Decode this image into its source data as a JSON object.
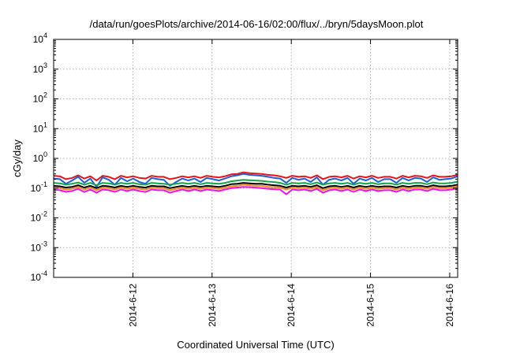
{
  "chart_data": {
    "type": "line",
    "title": "/data/run/goesPlots/archive/2014-06-16/02:00/flux/../bryn/5daysMoon.plot",
    "xlabel": "Coordinated Universal Time (UTC)",
    "ylabel": "cGy/day",
    "yscale": "log",
    "ylim": [
      0.0001,
      10000
    ],
    "xlim_days": [
      11.0,
      16.1
    ],
    "x_ticks": [
      {
        "label": "2014-6-12",
        "day": 12
      },
      {
        "label": "2014-6-13",
        "day": 13
      },
      {
        "label": "2014-6-14",
        "day": 14
      },
      {
        "label": "2014-6-15",
        "day": 15
      },
      {
        "label": "2014-6-16",
        "day": 16
      }
    ],
    "y_ticks": [
      {
        "base": "10",
        "exp": "-4",
        "value": 0.0001
      },
      {
        "base": "10",
        "exp": "-3",
        "value": 0.001
      },
      {
        "base": "10",
        "exp": "-2",
        "value": 0.01
      },
      {
        "base": "10",
        "exp": "-1",
        "value": 0.1
      },
      {
        "base": "10",
        "exp": "0",
        "value": 1
      },
      {
        "base": "10",
        "exp": "1",
        "value": 10
      },
      {
        "base": "10",
        "exp": "2",
        "value": 100
      },
      {
        "base": "10",
        "exp": "3",
        "value": 1000
      },
      {
        "base": "10",
        "exp": "4",
        "value": 10000
      }
    ],
    "grid": true,
    "legend": "none",
    "series": [
      {
        "color": "#e8141a",
        "values": [
          0.26,
          0.25,
          0.2,
          0.22,
          0.27,
          0.21,
          0.25,
          0.18,
          0.26,
          0.24,
          0.2,
          0.26,
          0.23,
          0.25,
          0.22,
          0.21,
          0.26,
          0.24,
          0.24,
          0.2,
          0.22,
          0.25,
          0.23,
          0.25,
          0.22,
          0.26,
          0.24,
          0.23,
          0.25,
          0.29,
          0.3,
          0.34,
          0.32,
          0.31,
          0.3,
          0.28,
          0.27,
          0.25,
          0.22,
          0.26,
          0.24,
          0.25,
          0.22,
          0.27,
          0.2,
          0.24,
          0.25,
          0.23,
          0.26,
          0.21,
          0.25,
          0.23,
          0.26,
          0.22,
          0.24,
          0.24,
          0.21,
          0.26,
          0.23,
          0.26,
          0.25,
          0.22,
          0.27,
          0.24,
          0.24,
          0.25,
          0.28
        ]
      },
      {
        "color": "#1f5fd6",
        "values": [
          0.21,
          0.2,
          0.14,
          0.18,
          0.24,
          0.15,
          0.21,
          0.11,
          0.23,
          0.19,
          0.13,
          0.22,
          0.17,
          0.21,
          0.16,
          0.14,
          0.22,
          0.2,
          0.19,
          0.12,
          0.16,
          0.21,
          0.18,
          0.21,
          0.16,
          0.22,
          0.2,
          0.18,
          0.21,
          0.25,
          0.27,
          0.3,
          0.28,
          0.27,
          0.26,
          0.24,
          0.22,
          0.21,
          0.15,
          0.22,
          0.19,
          0.21,
          0.16,
          0.23,
          0.13,
          0.19,
          0.21,
          0.18,
          0.22,
          0.14,
          0.21,
          0.18,
          0.22,
          0.16,
          0.2,
          0.2,
          0.15,
          0.22,
          0.18,
          0.22,
          0.21,
          0.16,
          0.23,
          0.19,
          0.2,
          0.21,
          0.25
        ]
      },
      {
        "color": "#17a34a",
        "values": [
          0.15,
          0.145,
          0.13,
          0.14,
          0.155,
          0.13,
          0.15,
          0.125,
          0.15,
          0.145,
          0.13,
          0.15,
          0.14,
          0.15,
          0.135,
          0.13,
          0.15,
          0.145,
          0.14,
          0.13,
          0.14,
          0.15,
          0.14,
          0.15,
          0.135,
          0.15,
          0.145,
          0.14,
          0.15,
          0.17,
          0.18,
          0.19,
          0.185,
          0.18,
          0.175,
          0.165,
          0.16,
          0.15,
          0.13,
          0.15,
          0.145,
          0.15,
          0.135,
          0.155,
          0.13,
          0.145,
          0.15,
          0.14,
          0.15,
          0.13,
          0.15,
          0.14,
          0.15,
          0.135,
          0.145,
          0.145,
          0.13,
          0.15,
          0.14,
          0.15,
          0.15,
          0.135,
          0.155,
          0.145,
          0.145,
          0.15,
          0.165
        ]
      },
      {
        "color": "#000000",
        "values": [
          0.12,
          0.115,
          0.105,
          0.11,
          0.125,
          0.105,
          0.12,
          0.1,
          0.12,
          0.115,
          0.105,
          0.12,
          0.11,
          0.12,
          0.11,
          0.105,
          0.12,
          0.115,
          0.115,
          0.1,
          0.11,
          0.12,
          0.11,
          0.12,
          0.11,
          0.12,
          0.115,
          0.11,
          0.12,
          0.135,
          0.14,
          0.15,
          0.145,
          0.14,
          0.14,
          0.13,
          0.125,
          0.12,
          0.105,
          0.12,
          0.115,
          0.12,
          0.11,
          0.125,
          0.1,
          0.115,
          0.12,
          0.11,
          0.12,
          0.105,
          0.12,
          0.11,
          0.12,
          0.11,
          0.115,
          0.115,
          0.105,
          0.12,
          0.11,
          0.12,
          0.12,
          0.11,
          0.125,
          0.115,
          0.115,
          0.12,
          0.13
        ]
      },
      {
        "color": "#f08a24",
        "values": [
          0.105,
          0.1,
          0.09,
          0.095,
          0.11,
          0.09,
          0.105,
          0.085,
          0.105,
          0.1,
          0.09,
          0.105,
          0.095,
          0.105,
          0.095,
          0.09,
          0.105,
          0.1,
          0.1,
          0.085,
          0.095,
          0.105,
          0.095,
          0.105,
          0.095,
          0.105,
          0.1,
          0.095,
          0.105,
          0.115,
          0.12,
          0.13,
          0.125,
          0.12,
          0.12,
          0.11,
          0.108,
          0.105,
          0.09,
          0.105,
          0.1,
          0.105,
          0.095,
          0.11,
          0.085,
          0.1,
          0.105,
          0.095,
          0.105,
          0.09,
          0.105,
          0.095,
          0.105,
          0.095,
          0.1,
          0.1,
          0.09,
          0.105,
          0.095,
          0.105,
          0.105,
          0.095,
          0.11,
          0.1,
          0.1,
          0.105,
          0.115
        ]
      },
      {
        "color": "#ee11ee",
        "values": [
          0.09,
          0.085,
          0.075,
          0.08,
          0.095,
          0.074,
          0.09,
          0.07,
          0.09,
          0.085,
          0.075,
          0.09,
          0.08,
          0.09,
          0.08,
          0.074,
          0.09,
          0.085,
          0.085,
          0.07,
          0.08,
          0.09,
          0.08,
          0.09,
          0.08,
          0.09,
          0.085,
          0.08,
          0.09,
          0.1,
          0.105,
          0.11,
          0.108,
          0.104,
          0.1,
          0.095,
          0.092,
          0.09,
          0.062,
          0.09,
          0.085,
          0.09,
          0.08,
          0.095,
          0.07,
          0.085,
          0.09,
          0.08,
          0.09,
          0.075,
          0.09,
          0.08,
          0.09,
          0.08,
          0.085,
          0.085,
          0.075,
          0.09,
          0.08,
          0.09,
          0.09,
          0.08,
          0.095,
          0.085,
          0.085,
          0.09,
          0.1
        ]
      }
    ]
  }
}
